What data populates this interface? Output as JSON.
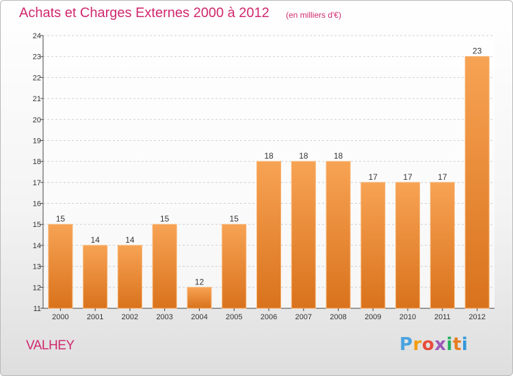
{
  "title": "Achats et Charges Externes 2000 à 2012",
  "subtitle": "(en milliers d'€)",
  "commune": "VALHEY",
  "logo": {
    "text": "Proxiti",
    "letter_colors": [
      "#4aa3df",
      "#f39c12",
      "#e74c3c",
      "#9b59b6",
      "#27ae60",
      "#e67e22",
      "#3498db"
    ]
  },
  "colors": {
    "bar_top": "#f7a354",
    "bar_bottom": "#d9721c",
    "bar_edge": "#f8b26e",
    "title": "#d0286e",
    "axis": "#444444",
    "grid": "#cfcfcf"
  },
  "chart_data": {
    "type": "bar",
    "title": "Achats et Charges Externes 2000 à 2012",
    "subtitle": "(en milliers d'€)",
    "categories": [
      "2000",
      "2001",
      "2002",
      "2003",
      "2004",
      "2005",
      "2006",
      "2007",
      "2008",
      "2009",
      "2010",
      "2011",
      "2012"
    ],
    "values": [
      15,
      14,
      14,
      15,
      12,
      15,
      18,
      18,
      18,
      17,
      17,
      17,
      23
    ],
    "ylim": [
      11,
      24
    ],
    "yticks": [
      11,
      12,
      13,
      14,
      15,
      16,
      17,
      18,
      19,
      20,
      21,
      22,
      23,
      24
    ],
    "xlabel": "",
    "ylabel": "",
    "grid": true
  }
}
